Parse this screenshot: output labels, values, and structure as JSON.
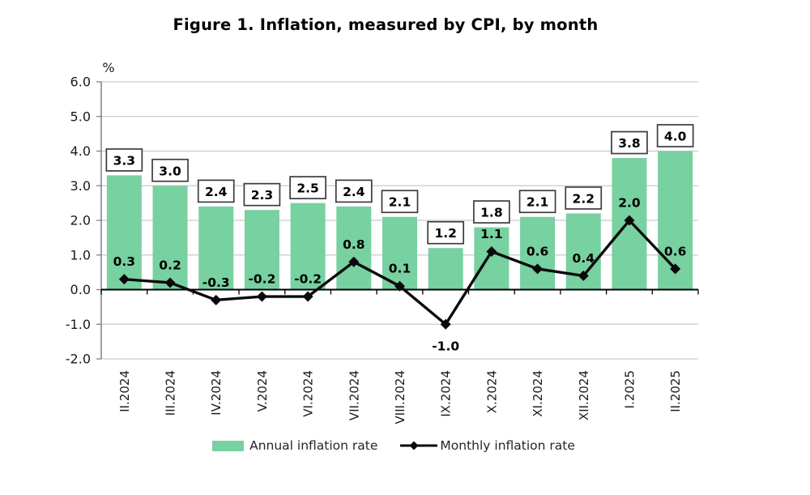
{
  "title": "Figure 1. Inflation, measured by CPI, by month",
  "chart_data": {
    "type": "bar",
    "title": "Figure 1. Inflation, measured by CPI, by month",
    "categories": [
      "II.2024",
      "III.2024",
      "IV.2024",
      "V.2024",
      "VI.2024",
      "VII.2024",
      "VIII.2024",
      "IX.2024",
      "X.2024",
      "XI.2024",
      "XII.2024",
      "I.2025",
      "II.2025"
    ],
    "series": [
      {
        "name": "Annual inflation rate",
        "type": "bar",
        "color": "#77d1a0",
        "values": [
          3.3,
          3.0,
          2.4,
          2.3,
          2.5,
          2.4,
          2.1,
          1.2,
          1.8,
          2.1,
          2.2,
          3.8,
          4.0
        ]
      },
      {
        "name": "Monthly inflation rate",
        "type": "line",
        "color": "#0a0a0a",
        "marker": "diamond",
        "values": [
          0.3,
          0.2,
          -0.3,
          -0.2,
          -0.2,
          0.8,
          0.1,
          -1.0,
          1.1,
          0.6,
          0.4,
          2.0,
          0.6
        ]
      }
    ],
    "xlabel": "",
    "ylabel": "%",
    "ylim": [
      -2.0,
      6.0
    ],
    "yticks": [
      6.0,
      5.0,
      4.0,
      3.0,
      2.0,
      1.0,
      0.0,
      -1.0,
      -2.0
    ],
    "grid": true,
    "legend_position": "bottom",
    "bar_labels_boxed": true,
    "line_labels_plain": true
  },
  "colors": {
    "bar": "#77d1a0",
    "line": "#0a0a0a",
    "grid": "#c9c9c9",
    "axis": "#7f7f7f",
    "zero_axis": "#000000",
    "label_box_border": "#3c3c3c",
    "text": "#1a1a1a"
  }
}
